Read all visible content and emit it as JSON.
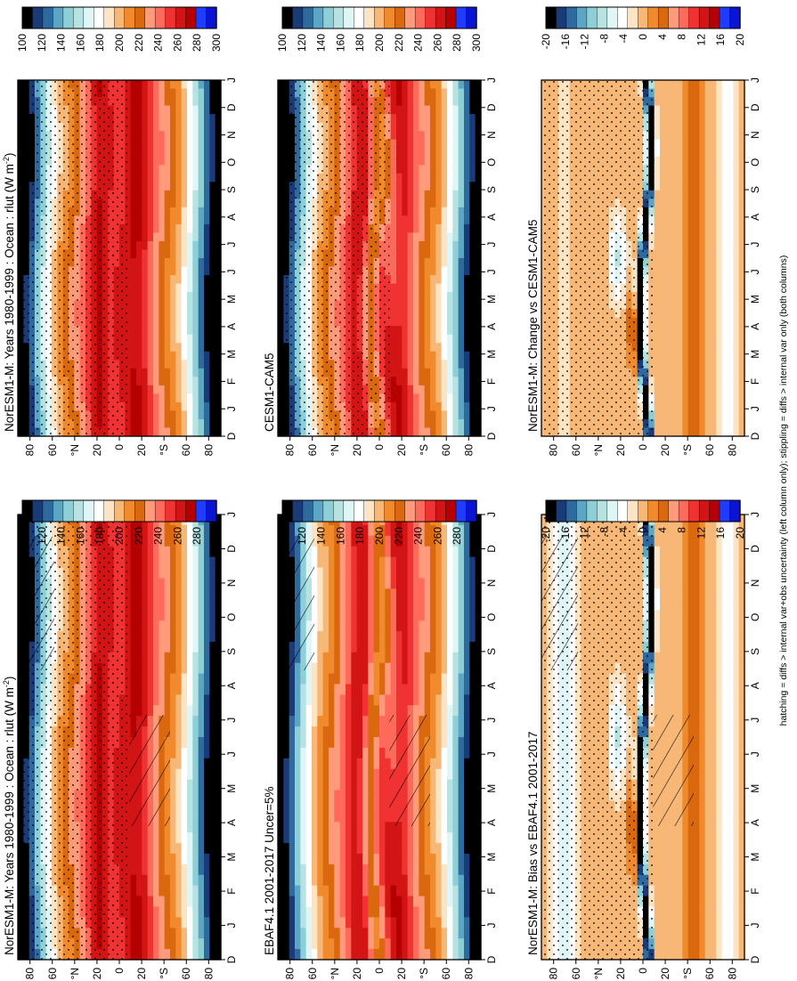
{
  "figure": {
    "footnote": "hatching = diffs > internal var+obs uncertainty (left column only); stippling = diffs > internal var only (both columns)"
  },
  "palettes": {
    "abs": [
      "#0a14d2",
      "#1f3cff",
      "#b40000",
      "#d21414",
      "#f03232",
      "#ff6a5a",
      "#ff9a7a",
      "#d9680f",
      "#f08a2c",
      "#f7b777",
      "#fde4c4",
      "#ffffff",
      "#e0f6f6",
      "#b6e2e2",
      "#8ccfd6",
      "#5aa6c4",
      "#2f6a9f",
      "#1b3a78",
      "#000000"
    ],
    "diff": [
      "#0a14d2",
      "#1f3cff",
      "#b40000",
      "#d21414",
      "#f03232",
      "#ff6a5a",
      "#ff9a7a",
      "#d9680f",
      "#f08a2c",
      "#f7b777",
      "#fde4c4",
      "#ffffff",
      "#e0f6f6",
      "#b6e2e2",
      "#8ccfd6",
      "#5aa6c4",
      "#2f6a9f",
      "#1b3a78",
      "#000000"
    ]
  },
  "chart_data": [
    {
      "id": "p11",
      "type": "heatmap",
      "title": "NorESM1-M: Years 1980-1999 : Ocean : rlut (W m",
      "title_sup": "-2",
      "title_tail": ")",
      "xlabel": "",
      "ylabel": "",
      "months": [
        "D",
        "J",
        "F",
        "M",
        "A",
        "M",
        "J",
        "J",
        "A",
        "S",
        "O",
        "N",
        "D",
        "J"
      ],
      "lat_ticks": [
        "80",
        "60",
        "°N",
        "20",
        "0",
        "20",
        "°S",
        "60",
        "80"
      ],
      "colorbar": {
        "ticks": [
          "300",
          "280",
          "260",
          "240",
          "220",
          "200",
          "180",
          "160",
          "140",
          "120",
          "100"
        ],
        "range": [
          100,
          300
        ]
      },
      "field": "abs",
      "hatching": true,
      "stippling": true
    },
    {
      "id": "p12",
      "type": "heatmap",
      "title": "NorESM1-M: Years 1980-1999 : Ocean : rlut (W m",
      "title_sup": "-2",
      "title_tail": ")",
      "months": [
        "D",
        "J",
        "F",
        "M",
        "A",
        "M",
        "J",
        "J",
        "A",
        "S",
        "O",
        "N",
        "D",
        "J"
      ],
      "lat_ticks": [
        "80",
        "60",
        "°N",
        "20",
        "0",
        "20",
        "°S",
        "60",
        "80"
      ],
      "colorbar": {
        "ticks": [
          "300",
          "280",
          "260",
          "240",
          "220",
          "200",
          "180",
          "160",
          "140",
          "120",
          "100"
        ],
        "range": [
          100,
          300
        ]
      },
      "field": "abs",
      "hatching": false,
      "stippling": true
    },
    {
      "id": "p21",
      "type": "heatmap",
      "title": "EBAF4.1 2001-2017 Uncer=5%",
      "months": [
        "D",
        "J",
        "F",
        "M",
        "A",
        "M",
        "J",
        "J",
        "A",
        "S",
        "O",
        "N",
        "D",
        "J"
      ],
      "lat_ticks": [
        "80",
        "60",
        "°N",
        "20",
        "0",
        "20",
        "°S",
        "60",
        "80"
      ],
      "colorbar": {
        "ticks": [
          "300",
          "280",
          "260",
          "240",
          "220",
          "200",
          "180",
          "160",
          "140",
          "120",
          "100"
        ],
        "range": [
          100,
          300
        ]
      },
      "field": "abs",
      "hatching": true,
      "stippling": false
    },
    {
      "id": "p22",
      "type": "heatmap",
      "title": "CESM1-CAM5",
      "months": [
        "D",
        "J",
        "F",
        "M",
        "A",
        "M",
        "J",
        "J",
        "A",
        "S",
        "O",
        "N",
        "D",
        "J"
      ],
      "lat_ticks": [
        "80",
        "60",
        "°N",
        "20",
        "0",
        "20",
        "°S",
        "60",
        "80"
      ],
      "colorbar": {
        "ticks": [
          "300",
          "280",
          "260",
          "240",
          "220",
          "200",
          "180",
          "160",
          "140",
          "120",
          "100"
        ],
        "range": [
          100,
          300
        ]
      },
      "field": "abs",
      "hatching": false,
      "stippling": true
    },
    {
      "id": "p31",
      "type": "heatmap",
      "title": "NorESM1-M: Bias vs EBAF4.1 2001-2017",
      "months": [
        "D",
        "J",
        "F",
        "M",
        "A",
        "M",
        "J",
        "J",
        "A",
        "S",
        "O",
        "N",
        "D",
        "J"
      ],
      "lat_ticks": [
        "80",
        "60",
        "°N",
        "20",
        "0",
        "20",
        "°S",
        "60",
        "80"
      ],
      "colorbar": {
        "ticks": [
          "20",
          "16",
          "12",
          "8",
          "4",
          "0",
          "-4",
          "-8",
          "-12",
          "-16",
          "-20"
        ],
        "range": [
          -20,
          20
        ]
      },
      "field": "bias",
      "hatching": true,
      "stippling": true
    },
    {
      "id": "p32",
      "type": "heatmap",
      "title": "NorESM1-M: Change vs CESM1-CAM5",
      "months": [
        "D",
        "J",
        "F",
        "M",
        "A",
        "M",
        "J",
        "J",
        "A",
        "S",
        "O",
        "N",
        "D",
        "J"
      ],
      "lat_ticks": [
        "80",
        "60",
        "°N",
        "20",
        "0",
        "20",
        "°S",
        "60",
        "80"
      ],
      "colorbar": {
        "ticks": [
          "20",
          "16",
          "12",
          "8",
          "4",
          "0",
          "-4",
          "-8",
          "-12",
          "-16",
          "-20"
        ],
        "range": [
          -20,
          20
        ]
      },
      "field": "change",
      "hatching": false,
      "stippling": true
    }
  ]
}
